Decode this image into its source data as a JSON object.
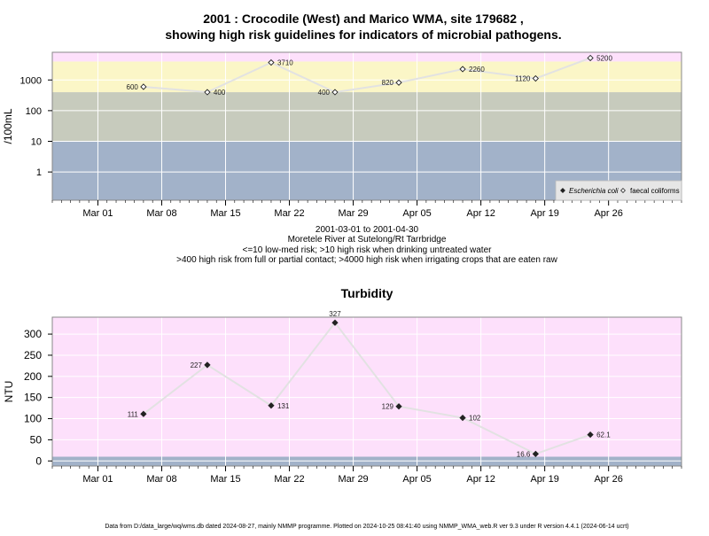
{
  "figure": {
    "title_line1": "2001 : Crocodile (West) and Marico WMA, site 179682 ,",
    "title_line2": "showing high risk guidelines for indicators of microbial pathogens.",
    "caption_lines": [
      "2001-03-01 to 2001-04-30",
      "Moretele River at Sutelong/Rt Tarrbridge",
      "<=10 low-med risk; >10 high risk when drinking untreated water",
      ">400 high risk from full or partial contact; >4000 high risk when irrigating crops that are eaten raw"
    ],
    "footer": "Data from D:/data_large/wq/wms.db dated 2024-08-27, mainly NMMP programme. Plotted on 2024-10-25 08:41:40 using NMMP_WMA_web.R ver 9.3 under R version 4.4.1 (2024-06-14 ucrt)"
  },
  "colors": {
    "band_blue": "#a2b2c9",
    "band_green": "#c7cbbd",
    "band_yellow": "#fbf6c7",
    "band_pink": "#fde0fb",
    "line": "#e2e2e2",
    "gridline": "#ffffff"
  },
  "chart_data": [
    {
      "type": "line",
      "title": "",
      "xlabel": "",
      "ylabel": "/100mL",
      "y_scale": "log",
      "ylim": [
        0.12,
        8000
      ],
      "xlim": [
        "2001-02-24",
        "2001-05-04"
      ],
      "y_ticks": [
        1,
        10,
        100,
        1000
      ],
      "y_tick_labels": [
        "1",
        "10",
        "100",
        "1000"
      ],
      "x_ticks": [
        "2001-03-01",
        "2001-03-08",
        "2001-03-15",
        "2001-03-22",
        "2001-03-29",
        "2001-04-05",
        "2001-04-12",
        "2001-04-19",
        "2001-04-26"
      ],
      "x_tick_labels": [
        "Mar 01",
        "Mar 08",
        "Mar 15",
        "Mar 22",
        "Mar 29",
        "Apr 05",
        "Apr 12",
        "Apr 19",
        "Apr 26"
      ],
      "bands": [
        {
          "from": 0.12,
          "to": 10,
          "color": "band_blue"
        },
        {
          "from": 10,
          "to": 400,
          "color": "band_green"
        },
        {
          "from": 400,
          "to": 4000,
          "color": "band_yellow"
        },
        {
          "from": 4000,
          "to": 8000,
          "color": "band_pink"
        }
      ],
      "legend": {
        "position": "bottom-right",
        "entries": [
          {
            "label": "Escherichia coli",
            "marker": "filled-diamond",
            "italic": true
          },
          {
            "label": "faecal coliforms",
            "marker": "open-diamond",
            "italic": false
          }
        ]
      },
      "series": [
        {
          "name": "faecal coliforms",
          "marker": "open-diamond",
          "points": [
            {
              "x": "2001-03-06",
              "y": 600,
              "label": "600",
              "label_side": "left"
            },
            {
              "x": "2001-03-13",
              "y": 400,
              "label": "400",
              "label_side": "right"
            },
            {
              "x": "2001-03-20",
              "y": 3710,
              "label": "3710",
              "label_side": "right"
            },
            {
              "x": "2001-03-27",
              "y": 400,
              "label": "400",
              "label_side": "left"
            },
            {
              "x": "2001-04-03",
              "y": 820,
              "label": "820",
              "label_side": "left"
            },
            {
              "x": "2001-04-10",
              "y": 2260,
              "label": "2260",
              "label_side": "right"
            },
            {
              "x": "2001-04-18",
              "y": 1120,
              "label": "1120",
              "label_side": "left"
            },
            {
              "x": "2001-04-24",
              "y": 5200,
              "label": "5200",
              "label_side": "right"
            }
          ]
        }
      ]
    },
    {
      "type": "line",
      "title": "Turbidity",
      "xlabel": "",
      "ylabel": "NTU",
      "y_scale": "linear",
      "ylim": [
        -12,
        340
      ],
      "xlim": [
        "2001-02-24",
        "2001-05-04"
      ],
      "y_ticks": [
        0,
        50,
        100,
        150,
        200,
        250,
        300
      ],
      "y_tick_labels": [
        "0",
        "50",
        "100",
        "150",
        "200",
        "250",
        "300"
      ],
      "x_ticks": [
        "2001-03-01",
        "2001-03-08",
        "2001-03-15",
        "2001-03-22",
        "2001-03-29",
        "2001-04-05",
        "2001-04-12",
        "2001-04-19",
        "2001-04-26"
      ],
      "x_tick_labels": [
        "Mar 01",
        "Mar 08",
        "Mar 15",
        "Mar 22",
        "Mar 29",
        "Apr 05",
        "Apr 12",
        "Apr 19",
        "Apr 26"
      ],
      "bands": [
        {
          "from": -12,
          "to": 10,
          "color": "band_blue"
        },
        {
          "from": 10,
          "to": 340,
          "color": "band_pink"
        }
      ],
      "series": [
        {
          "name": "",
          "marker": "filled-diamond",
          "points": [
            {
              "x": "2001-03-06",
              "y": 111,
              "label": "111",
              "label_side": "left"
            },
            {
              "x": "2001-03-13",
              "y": 227,
              "label": "227",
              "label_side": "left"
            },
            {
              "x": "2001-03-20",
              "y": 131,
              "label": "131",
              "label_side": "right"
            },
            {
              "x": "2001-03-27",
              "y": 327,
              "label": "327",
              "label_side": "above"
            },
            {
              "x": "2001-04-03",
              "y": 129,
              "label": "129",
              "label_side": "left"
            },
            {
              "x": "2001-04-10",
              "y": 102,
              "label": "102",
              "label_side": "right"
            },
            {
              "x": "2001-04-18",
              "y": 16.6,
              "label": "16.6",
              "label_side": "left"
            },
            {
              "x": "2001-04-24",
              "y": 62.1,
              "label": "62.1",
              "label_side": "right"
            }
          ]
        }
      ]
    }
  ]
}
